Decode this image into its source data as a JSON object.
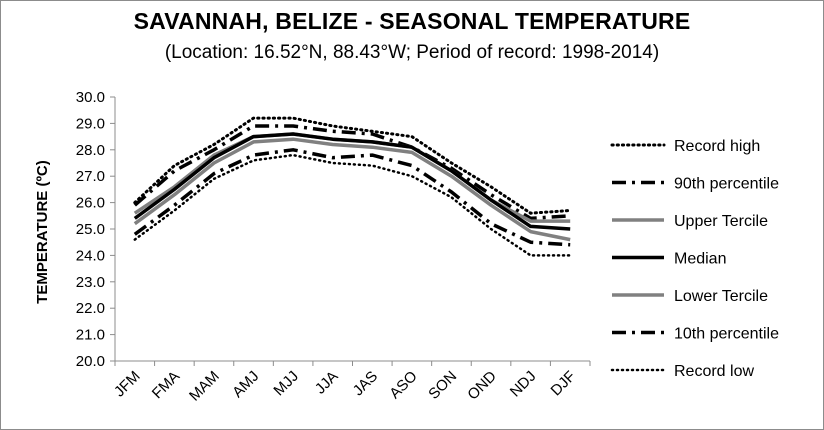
{
  "chart_data": {
    "type": "line",
    "title": "SAVANNAH, BELIZE - SEASONAL TEMPERATURE",
    "subtitle": "(Location: 16.52°N, 88.43°W; Period of record: 1998-2014)",
    "xlabel": "",
    "ylabel": "TEMPERATURE (ºC)",
    "ylim": [
      20.0,
      30.0
    ],
    "ytick_step": 1.0,
    "grid": false,
    "legend_position": "right",
    "categories": [
      "JFM",
      "FMA",
      "MAM",
      "AMJ",
      "MJJ",
      "JJA",
      "JAS",
      "ASO",
      "SON",
      "OND",
      "NDJ",
      "DJF"
    ],
    "series": [
      {
        "name": "Record high",
        "style": "dotted-bold",
        "color": "#000000",
        "values": [
          26.0,
          27.4,
          28.2,
          29.2,
          29.2,
          28.9,
          28.7,
          28.5,
          27.5,
          26.6,
          25.6,
          25.7
        ]
      },
      {
        "name": "90th percentile",
        "style": "dashdot",
        "color": "#000000",
        "values": [
          25.9,
          27.2,
          28.0,
          28.9,
          28.9,
          28.7,
          28.6,
          28.1,
          27.3,
          26.3,
          25.4,
          25.5
        ]
      },
      {
        "name": "Upper Tercile",
        "style": "solid-gray",
        "color": "#808080",
        "values": [
          25.6,
          26.6,
          27.8,
          28.5,
          28.6,
          28.4,
          28.3,
          28.1,
          27.2,
          26.1,
          25.3,
          25.3
        ]
      },
      {
        "name": "Median",
        "style": "solid-black",
        "color": "#000000",
        "values": [
          25.4,
          26.5,
          27.7,
          28.5,
          28.6,
          28.4,
          28.3,
          28.1,
          27.2,
          26.1,
          25.1,
          25.0
        ]
      },
      {
        "name": "Lower Tercile",
        "style": "solid-gray",
        "color": "#808080",
        "values": [
          25.2,
          26.3,
          27.5,
          28.3,
          28.4,
          28.2,
          28.1,
          27.9,
          27.0,
          25.9,
          24.9,
          24.6
        ]
      },
      {
        "name": "10th percentile",
        "style": "dashdot",
        "color": "#000000",
        "values": [
          24.8,
          25.9,
          27.1,
          27.8,
          28.0,
          27.7,
          27.8,
          27.4,
          26.4,
          25.2,
          24.5,
          24.4
        ]
      },
      {
        "name": "Record low",
        "style": "dotted",
        "color": "#000000",
        "values": [
          24.6,
          25.7,
          26.9,
          27.6,
          27.8,
          27.5,
          27.4,
          27.0,
          26.2,
          25.0,
          24.0,
          24.0
        ]
      }
    ]
  }
}
